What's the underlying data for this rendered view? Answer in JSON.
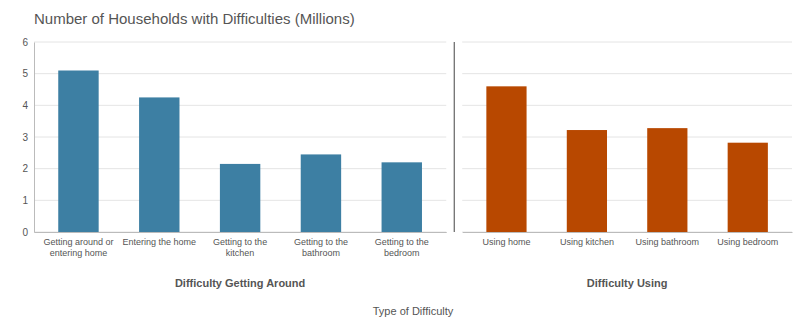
{
  "chart_data": [
    {
      "type": "bar",
      "title": "Number of Households with Difficulties (Millions)",
      "xlabel": "Difficulty Getting Around",
      "annotations": [
        "Type of Difficulty"
      ],
      "categories": [
        "Getting around or\nentering home",
        "Entering the home",
        "Getting to the\nkitchen",
        "Getting to the\nbathroom",
        "Getting to the\nbedroom"
      ],
      "values": [
        5.1,
        4.25,
        2.15,
        2.45,
        2.2
      ],
      "color": "#3d7fa3",
      "ylim": [
        0,
        6
      ],
      "yticks": [
        0,
        1,
        2,
        3,
        4,
        5,
        6
      ],
      "grid": true
    },
    {
      "type": "bar",
      "xlabel": "Difficulty Using",
      "categories": [
        "Using home",
        "Using kitchen",
        "Using bathroom",
        "Using bedroom"
      ],
      "values": [
        4.6,
        3.22,
        3.28,
        2.82
      ],
      "color": "#b84800",
      "ylim": [
        0,
        6
      ],
      "yticks": [
        0,
        1,
        2,
        3,
        4,
        5,
        6
      ],
      "grid": true,
      "tick_labels": "x"
    }
  ]
}
